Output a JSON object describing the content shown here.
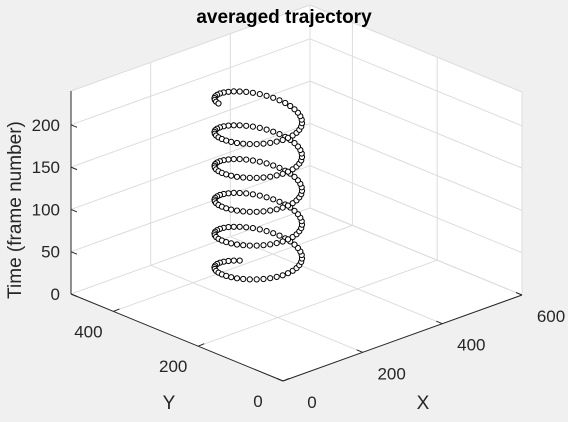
{
  "colors": {
    "figure_background": "#f0f0f0",
    "axes_background": "#ffffff",
    "grid": "#dcdcdc",
    "axis_line": "#262626",
    "marker_edge": "#000000",
    "marker_face": "#ffffff"
  },
  "chart_data": {
    "type": "scatter",
    "subtype": "3d-scatter",
    "title": "averaged trajectory",
    "xlabel": "X",
    "ylabel": "Y",
    "zlabel": "Time (frame number)",
    "xlim": [
      0,
      600
    ],
    "ylim": [
      0,
      500
    ],
    "zlim": [
      0,
      240
    ],
    "xticks": [
      0,
      200,
      400,
      600
    ],
    "yticks": [
      0,
      200,
      400
    ],
    "zticks": [
      0,
      50,
      100,
      150,
      200
    ],
    "xtick_labels": [
      "0",
      "200",
      "400",
      "600"
    ],
    "ytick_labels": [
      "0",
      "200",
      "400"
    ],
    "ztick_labels": [
      "0",
      "50",
      "100",
      "150",
      "200"
    ],
    "grid": true,
    "box": true,
    "view": "default 3-D (azimuth -37.5, elevation 30)",
    "marker": "open circle",
    "series": [
      {
        "marker": "o",
        "color": "#000000",
        "trajectory": "helix around the vertical time axis, ~5.5 turns over 210 frames, center near X=305, Y=345, radius ~75",
        "point_count": 211,
        "t_start": 0,
        "t_end": 210,
        "step": 1,
        "center_x": 305,
        "center_y": 345,
        "radius_x": 72,
        "radius_y": 78,
        "period_frames": 40,
        "phase": 1.15
      }
    ]
  }
}
